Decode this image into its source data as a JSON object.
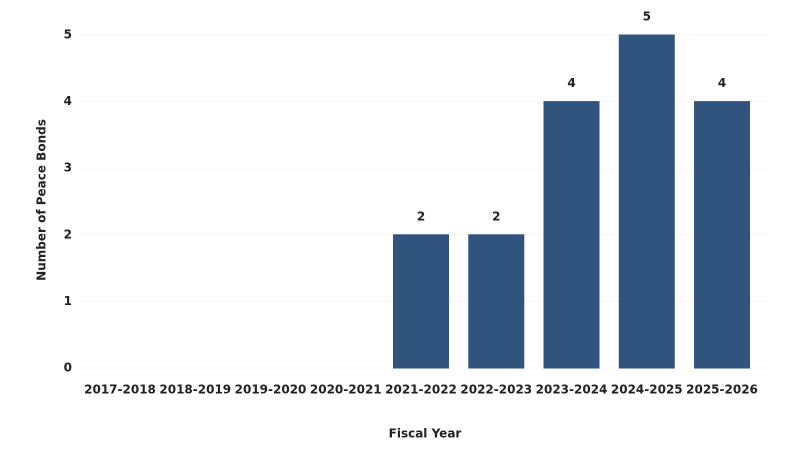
{
  "chart_data": {
    "type": "bar",
    "y_label": "Number of Peace Bonds",
    "x_label": "Fiscal Year",
    "categories": [
      "2017-2018",
      "2018-2019",
      "2019-2020",
      "2020-2021",
      "2021-2022",
      "2022-2023",
      "2023-2024",
      "2024-2025",
      "2025-2026"
    ],
    "values": [
      0,
      0,
      0,
      0,
      2,
      2,
      4,
      5,
      4
    ],
    "color": "#31547f",
    "ylim": [
      0,
      5
    ],
    "yticks": [
      0,
      1,
      2,
      3,
      4,
      5
    ],
    "grid": true
  }
}
